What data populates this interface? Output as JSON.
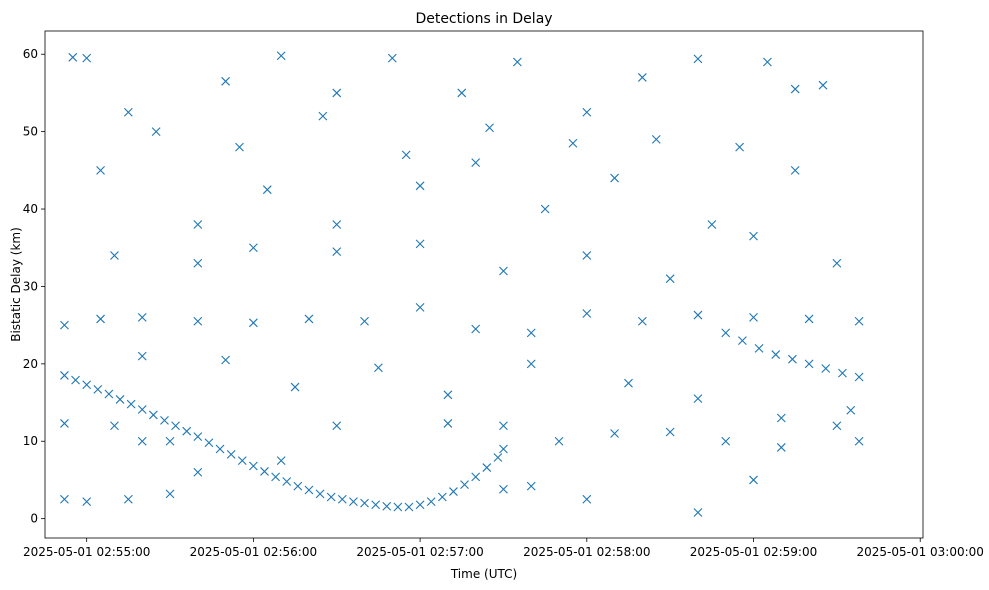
{
  "chart_data": {
    "type": "scatter",
    "title": "Detections in Delay",
    "xlabel": "Time (UTC)",
    "ylabel": "Bistatic Delay (km)",
    "marker": "x",
    "marker_color": "#1f77b4",
    "xlim": [
      "2025-05-01 02:54:45",
      "2025-05-01 03:00:01"
    ],
    "ylim": [
      -2.5,
      63
    ],
    "x_ticks": [
      "2025-05-01 02:55:00",
      "2025-05-01 02:56:00",
      "2025-05-01 02:57:00",
      "2025-05-01 02:58:00",
      "2025-05-01 02:59:00",
      "2025-05-01 03:00:00"
    ],
    "y_ticks": [
      0,
      10,
      20,
      30,
      40,
      50,
      60
    ],
    "grid": false,
    "legend": "none",
    "series": [
      {
        "points": [
          [
            "2025-05-01 02:54:52",
            18.5
          ],
          [
            "2025-05-01 02:54:56",
            17.9
          ],
          [
            "2025-05-01 02:55:00",
            17.3
          ],
          [
            "2025-05-01 02:55:04",
            16.7
          ],
          [
            "2025-05-01 02:55:08",
            16.1
          ],
          [
            "2025-05-01 02:55:12",
            15.4
          ],
          [
            "2025-05-01 02:55:16",
            14.8
          ],
          [
            "2025-05-01 02:55:20",
            14.1
          ],
          [
            "2025-05-01 02:55:24",
            13.4
          ],
          [
            "2025-05-01 02:55:28",
            12.7
          ],
          [
            "2025-05-01 02:55:32",
            12.0
          ],
          [
            "2025-05-01 02:55:36",
            11.3
          ],
          [
            "2025-05-01 02:55:40",
            10.6
          ],
          [
            "2025-05-01 02:55:44",
            9.8
          ],
          [
            "2025-05-01 02:55:48",
            9.0
          ],
          [
            "2025-05-01 02:55:52",
            8.3
          ],
          [
            "2025-05-01 02:55:56",
            7.5
          ],
          [
            "2025-05-01 02:56:00",
            6.8
          ],
          [
            "2025-05-01 02:56:04",
            6.1
          ],
          [
            "2025-05-01 02:56:08",
            5.4
          ],
          [
            "2025-05-01 02:56:12",
            4.8
          ],
          [
            "2025-05-01 02:56:16",
            4.2
          ],
          [
            "2025-05-01 02:56:20",
            3.7
          ],
          [
            "2025-05-01 02:56:24",
            3.2
          ],
          [
            "2025-05-01 02:56:28",
            2.8
          ],
          [
            "2025-05-01 02:56:32",
            2.5
          ],
          [
            "2025-05-01 02:56:36",
            2.2
          ],
          [
            "2025-05-01 02:56:40",
            2.0
          ],
          [
            "2025-05-01 02:56:44",
            1.8
          ],
          [
            "2025-05-01 02:56:48",
            1.6
          ],
          [
            "2025-05-01 02:56:52",
            1.5
          ],
          [
            "2025-05-01 02:56:56",
            1.5
          ],
          [
            "2025-05-01 02:57:00",
            1.8
          ],
          [
            "2025-05-01 02:57:04",
            2.2
          ],
          [
            "2025-05-01 02:57:08",
            2.8
          ],
          [
            "2025-05-01 02:57:12",
            3.5
          ],
          [
            "2025-05-01 02:57:16",
            4.4
          ],
          [
            "2025-05-01 02:57:20",
            5.4
          ],
          [
            "2025-05-01 02:57:24",
            6.6
          ],
          [
            "2025-05-01 02:57:28",
            7.9
          ],
          [
            "2025-05-01 02:57:30",
            9.0
          ],
          [
            "2025-05-01 02:58:50",
            24.0
          ],
          [
            "2025-05-01 02:58:56",
            23.0
          ],
          [
            "2025-05-01 02:59:02",
            22.0
          ],
          [
            "2025-05-01 02:59:08",
            21.2
          ],
          [
            "2025-05-01 02:59:14",
            20.6
          ],
          [
            "2025-05-01 02:59:20",
            20.0
          ],
          [
            "2025-05-01 02:59:26",
            19.4
          ],
          [
            "2025-05-01 02:59:32",
            18.8
          ],
          [
            "2025-05-01 02:59:38",
            18.3
          ],
          [
            "2025-05-01 02:54:52",
            25.0
          ],
          [
            "2025-05-01 02:55:05",
            25.8
          ],
          [
            "2025-05-01 02:55:20",
            26.0
          ],
          [
            "2025-05-01 02:55:40",
            25.5
          ],
          [
            "2025-05-01 02:56:00",
            25.3
          ],
          [
            "2025-05-01 02:56:20",
            25.8
          ],
          [
            "2025-05-01 02:56:40",
            25.5
          ],
          [
            "2025-05-01 02:57:00",
            27.3
          ],
          [
            "2025-05-01 02:57:20",
            24.5
          ],
          [
            "2025-05-01 02:57:40",
            24.0
          ],
          [
            "2025-05-01 02:58:00",
            26.5
          ],
          [
            "2025-05-01 02:58:20",
            25.5
          ],
          [
            "2025-05-01 02:58:40",
            26.3
          ],
          [
            "2025-05-01 02:59:00",
            26.0
          ],
          [
            "2025-05-01 02:59:20",
            25.8
          ],
          [
            "2025-05-01 02:59:38",
            25.5
          ],
          [
            "2025-05-01 02:54:52",
            12.3
          ],
          [
            "2025-05-01 02:55:10",
            12.0
          ],
          [
            "2025-05-01 02:55:20",
            10.0
          ],
          [
            "2025-05-01 02:55:30",
            10.0
          ],
          [
            "2025-05-01 02:56:30",
            12.0
          ],
          [
            "2025-05-01 02:57:10",
            12.3
          ],
          [
            "2025-05-01 02:57:30",
            12.0
          ],
          [
            "2025-05-01 02:57:50",
            10.0
          ],
          [
            "2025-05-01 02:58:10",
            11.0
          ],
          [
            "2025-05-01 02:58:30",
            11.2
          ],
          [
            "2025-05-01 02:58:50",
            10.0
          ],
          [
            "2025-05-01 02:59:10",
            9.2
          ],
          [
            "2025-05-01 02:59:30",
            12.0
          ],
          [
            "2025-05-01 02:59:38",
            10.0
          ],
          [
            "2025-05-01 02:54:52",
            2.5
          ],
          [
            "2025-05-01 02:55:00",
            2.2
          ],
          [
            "2025-05-01 02:55:15",
            2.5
          ],
          [
            "2025-05-01 02:55:30",
            3.2
          ],
          [
            "2025-05-01 02:55:40",
            6.0
          ],
          [
            "2025-05-01 02:56:10",
            7.5
          ],
          [
            "2025-05-01 02:57:30",
            3.8
          ],
          [
            "2025-05-01 02:57:40",
            4.2
          ],
          [
            "2025-05-01 02:58:00",
            2.5
          ],
          [
            "2025-05-01 02:58:40",
            0.8
          ],
          [
            "2025-05-01 02:59:00",
            5.0
          ],
          [
            "2025-05-01 02:54:55",
            59.6
          ],
          [
            "2025-05-01 02:55:00",
            59.5
          ],
          [
            "2025-05-01 02:55:15",
            52.5
          ],
          [
            "2025-05-01 02:55:50",
            56.5
          ],
          [
            "2025-05-01 02:56:10",
            59.8
          ],
          [
            "2025-05-01 02:56:30",
            55.0
          ],
          [
            "2025-05-01 02:56:50",
            59.5
          ],
          [
            "2025-05-01 02:57:15",
            55.0
          ],
          [
            "2025-05-01 02:57:35",
            59.0
          ],
          [
            "2025-05-01 02:58:00",
            52.5
          ],
          [
            "2025-05-01 02:58:20",
            57.0
          ],
          [
            "2025-05-01 02:58:40",
            59.4
          ],
          [
            "2025-05-01 02:59:05",
            59.0
          ],
          [
            "2025-05-01 02:59:15",
            55.5
          ],
          [
            "2025-05-01 02:55:05",
            45.0
          ],
          [
            "2025-05-01 02:55:40",
            38.0
          ],
          [
            "2025-05-01 02:56:05",
            42.5
          ],
          [
            "2025-05-01 02:56:30",
            38.0
          ],
          [
            "2025-05-01 02:57:00",
            43.0
          ],
          [
            "2025-05-01 02:57:20",
            46.0
          ],
          [
            "2025-05-01 02:57:45",
            40.0
          ],
          [
            "2025-05-01 02:58:10",
            44.0
          ],
          [
            "2025-05-01 02:58:45",
            38.0
          ],
          [
            "2025-05-01 02:59:15",
            45.0
          ],
          [
            "2025-05-01 02:55:10",
            34.0
          ],
          [
            "2025-05-01 02:55:40",
            33.0
          ],
          [
            "2025-05-01 02:56:00",
            35.0
          ],
          [
            "2025-05-01 02:56:30",
            34.5
          ],
          [
            "2025-05-01 02:57:00",
            35.5
          ],
          [
            "2025-05-01 02:57:30",
            32.0
          ],
          [
            "2025-05-01 02:58:00",
            34.0
          ],
          [
            "2025-05-01 02:58:30",
            31.0
          ],
          [
            "2025-05-01 02:59:00",
            36.5
          ],
          [
            "2025-05-01 02:59:30",
            33.0
          ],
          [
            "2025-05-01 02:55:20",
            21.0
          ],
          [
            "2025-05-01 02:55:50",
            20.5
          ],
          [
            "2025-05-01 02:56:15",
            17.0
          ],
          [
            "2025-05-01 02:56:45",
            19.5
          ],
          [
            "2025-05-01 02:57:10",
            16.0
          ],
          [
            "2025-05-01 02:57:40",
            20.0
          ],
          [
            "2025-05-01 02:58:15",
            17.5
          ],
          [
            "2025-05-01 02:58:40",
            15.5
          ],
          [
            "2025-05-01 02:59:10",
            13.0
          ],
          [
            "2025-05-01 02:59:35",
            14.0
          ],
          [
            "2025-05-01 02:55:25",
            50.0
          ],
          [
            "2025-05-01 02:55:55",
            48.0
          ],
          [
            "2025-05-01 02:56:25",
            52.0
          ],
          [
            "2025-05-01 02:56:55",
            47.0
          ],
          [
            "2025-05-01 02:57:25",
            50.5
          ],
          [
            "2025-05-01 02:57:55",
            48.5
          ],
          [
            "2025-05-01 02:58:25",
            49.0
          ],
          [
            "2025-05-01 02:58:55",
            48.0
          ],
          [
            "2025-05-01 02:59:25",
            56.0
          ]
        ]
      }
    ]
  }
}
